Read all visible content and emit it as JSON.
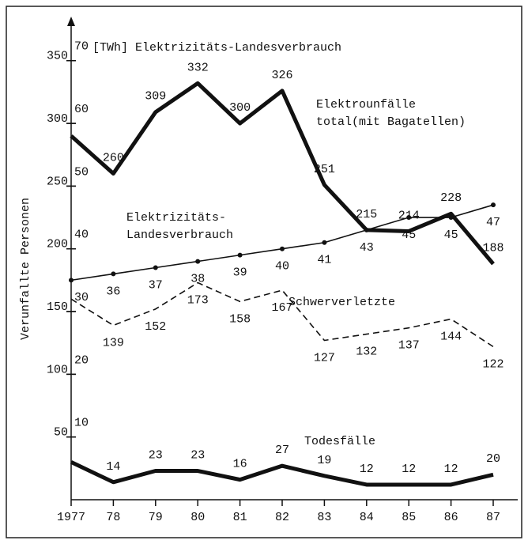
{
  "chart_data": {
    "type": "line",
    "y_label": "Verunfallte Personen",
    "y2_label": "[TWh] Elektrizitäts-Landesverbrauch",
    "categories": [
      "1977",
      "78",
      "79",
      "80",
      "81",
      "82",
      "83",
      "84",
      "85",
      "86",
      "87"
    ],
    "ylim": [
      0,
      370
    ],
    "yticks": [
      50,
      100,
      150,
      200,
      250,
      300,
      350
    ],
    "y2lim": [
      0,
      74
    ],
    "y2ticks": [
      10,
      20,
      30,
      40,
      50,
      60,
      70
    ],
    "series": [
      {
        "name_lines": [
          "Elektrounfälle",
          "total(mit Bagatellen)"
        ],
        "color": "#111111",
        "linestyle": "solid",
        "weight": "bold",
        "markers": false,
        "values": [
          290,
          260,
          309,
          332,
          300,
          326,
          251,
          215,
          214,
          228,
          188
        ],
        "value_labels": [
          null,
          "260",
          "309",
          "332",
          "300",
          "326",
          "251",
          "215",
          "214",
          "228",
          "188"
        ]
      },
      {
        "name_lines": [
          "Elektrizitäts-",
          "Landesverbrauch"
        ],
        "color": "#111111",
        "linestyle": "solid",
        "weight": "normal",
        "markers": true,
        "axis": "y2",
        "values": [
          35,
          36,
          37,
          38,
          39,
          40,
          41,
          43,
          45,
          45,
          47
        ],
        "value_labels": [
          null,
          "36",
          "37",
          "38",
          "39",
          "40",
          "41",
          "43",
          "45",
          "45",
          "47"
        ]
      },
      {
        "name_lines": [
          "Schwerverletzte"
        ],
        "color": "#111111",
        "linestyle": "dashed",
        "weight": "normal",
        "markers": false,
        "values": [
          160,
          139,
          152,
          173,
          158,
          167,
          127,
          132,
          137,
          144,
          122
        ],
        "value_labels": [
          null,
          "139",
          "152",
          "173",
          "158",
          "167",
          "127",
          "132",
          "137",
          "144",
          "122"
        ]
      },
      {
        "name_lines": [
          "Todesfälle"
        ],
        "color": "#111111",
        "linestyle": "solid",
        "weight": "bold",
        "markers": false,
        "values": [
          30,
          14,
          23,
          23,
          16,
          27,
          19,
          12,
          12,
          12,
          20
        ],
        "value_labels": [
          null,
          "14",
          "23",
          "23",
          "16",
          "27",
          "19",
          "12",
          "12",
          "12",
          "20"
        ]
      }
    ]
  }
}
